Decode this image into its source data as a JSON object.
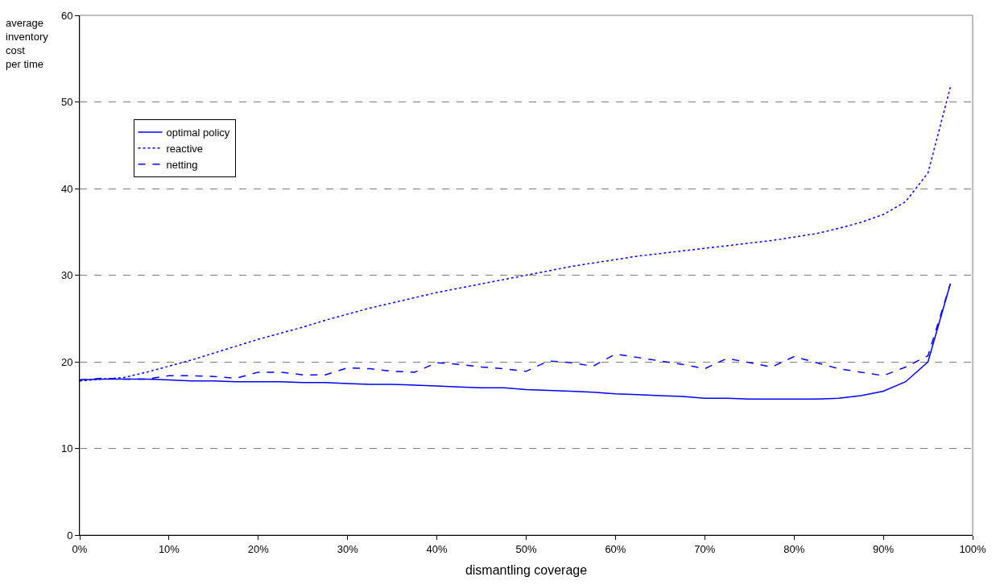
{
  "chart_data": {
    "type": "line",
    "xlabel": "dismantling coverage",
    "ylabel": "average\ninventory\ncost\nper time",
    "x": [
      0,
      2.5,
      5,
      7.5,
      10,
      12.5,
      15,
      17.5,
      20,
      22.5,
      25,
      27.5,
      30,
      32.5,
      35,
      37.5,
      40,
      42.5,
      45,
      47.5,
      50,
      52.5,
      55,
      57.5,
      60,
      62.5,
      65,
      67.5,
      70,
      72.5,
      75,
      77.5,
      80,
      82.5,
      85,
      87.5,
      90,
      92.5,
      95,
      97.5
    ],
    "series": [
      {
        "name": "optimal policy",
        "color": "#0000ff",
        "line_style": "solid",
        "values": [
          17.9,
          18.0,
          18.0,
          18.0,
          17.9,
          17.8,
          17.8,
          17.7,
          17.7,
          17.7,
          17.6,
          17.6,
          17.5,
          17.4,
          17.4,
          17.3,
          17.2,
          17.1,
          17.0,
          17.0,
          16.8,
          16.7,
          16.6,
          16.5,
          16.3,
          16.2,
          16.1,
          16.0,
          15.8,
          15.8,
          15.7,
          15.7,
          15.7,
          15.7,
          15.8,
          16.1,
          16.6,
          17.7,
          20.0,
          29.0
        ]
      },
      {
        "name": "reactive",
        "color": "#0000ff",
        "line_style": "dotted",
        "values": [
          17.8,
          18.0,
          18.2,
          18.8,
          19.5,
          20.2,
          21.0,
          21.8,
          22.6,
          23.3,
          24.0,
          24.8,
          25.5,
          26.2,
          26.8,
          27.4,
          28.0,
          28.5,
          29.0,
          29.5,
          30.0,
          30.5,
          31.0,
          31.4,
          31.8,
          32.2,
          32.5,
          32.8,
          33.1,
          33.4,
          33.7,
          34.0,
          34.4,
          34.8,
          35.4,
          36.1,
          37.0,
          38.5,
          41.8,
          51.7
        ]
      },
      {
        "name": "netting",
        "color": "#0000ff",
        "line_style": "dashed",
        "values": [
          17.9,
          18.1,
          18.0,
          18.0,
          18.4,
          18.4,
          18.3,
          18.1,
          18.8,
          18.8,
          18.5,
          18.5,
          19.3,
          19.2,
          18.9,
          18.8,
          19.9,
          19.7,
          19.4,
          19.2,
          18.9,
          20.1,
          19.9,
          19.5,
          20.9,
          20.5,
          20.1,
          19.7,
          19.2,
          20.4,
          19.9,
          19.4,
          20.6,
          19.9,
          19.2,
          18.8,
          18.4,
          19.4,
          20.7,
          29.0
        ]
      }
    ],
    "xlim": [
      0,
      100
    ],
    "xticks": [
      {
        "value": 0,
        "label": "0%"
      },
      {
        "value": 10,
        "label": "10%"
      },
      {
        "value": 20,
        "label": "20%"
      },
      {
        "value": 30,
        "label": "30%"
      },
      {
        "value": 40,
        "label": "40%"
      },
      {
        "value": 50,
        "label": "50%"
      },
      {
        "value": 60,
        "label": "60%"
      },
      {
        "value": 70,
        "label": "70%"
      },
      {
        "value": 80,
        "label": "80%"
      },
      {
        "value": 90,
        "label": "90%"
      },
      {
        "value": 100,
        "label": "100%"
      }
    ],
    "ylim": [
      0,
      60
    ],
    "yticks": [
      0,
      10,
      20,
      30,
      40,
      50,
      60
    ],
    "grid": "y",
    "legend": "top left",
    "marker": "none"
  }
}
